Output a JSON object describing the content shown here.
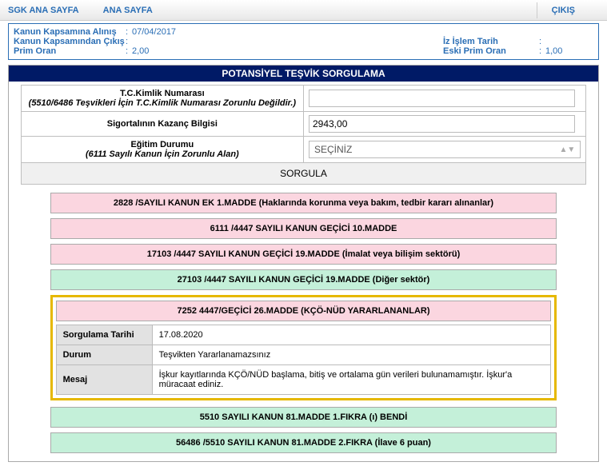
{
  "topbar": {
    "link1": "SGK ANA SAYFA",
    "link2": "ANA SAYFA",
    "exit": "ÇIKIŞ"
  },
  "info": {
    "rows": [
      {
        "l": "Kanun Kapsamına Alınış",
        "v": "07/04/2017",
        "rl": "",
        "rv": ""
      },
      {
        "l": "Kanun Kapsamından Çıkış",
        "v": "",
        "rl": "İz İşlem Tarih",
        "rv": ""
      },
      {
        "l": "Prim Oran",
        "v": "2,00",
        "rl": "Eski Prim Oran",
        "rv": "1,00"
      }
    ]
  },
  "panel": {
    "title": "POTANSİYEL TEŞVİK SORGULAMA"
  },
  "form": {
    "tc_label": "T.C.Kimlik Numarası",
    "tc_sub": "(5510/6486 Teşvikleri İçin T.C.Kimlik Numarası Zorunlu Değildir.)",
    "tc_value": "",
    "kazanc_label": "Sigortalının Kazanç Bilgisi",
    "kazanc_value": "2943,00",
    "egitim_label": "Eğitim Durumu",
    "egitim_sub": "(6111 Sayılı Kanun İçin Zorunlu Alan)",
    "egitim_value": "SEÇİNİZ",
    "sorgula": "SORGULA"
  },
  "items": {
    "a": "2828 /SAYILI KANUN EK 1.MADDE (Haklarında korunma veya bakım, tedbir kararı alınanlar)",
    "b": "6111 /4447 SAYILI KANUN GEÇİCİ 10.MADDE",
    "c": "17103 /4447 SAYILI KANUN GEÇİCİ 19.MADDE (İmalat veya bilişim sektörü)",
    "d": "27103 /4447 SAYILI KANUN GEÇİCİ 19.MADDE (Diğer sektör)",
    "e": "7252 4447/GEÇİCİ 26.MADDE (KÇÖ-NÜD YARARLANANLAR)",
    "f": "5510 SAYILI KANUN 81.MADDE 1.FIKRA (ı) BENDİ",
    "g": "56486 /5510 SAYILI KANUN 81.MADDE 2.FIKRA (İlave 6 puan)"
  },
  "detail": {
    "k1": "Sorgulama Tarihi",
    "v1": "17.08.2020",
    "k2": "Durum",
    "v2": "Teşvikten Yararlanamazsınız",
    "k3": "Mesaj",
    "v3": "İşkur kayıtlarında KÇÖ/NÜD başlama, bitiş ve ortalama gün verileri bulunamamıştır. İşkur'a müracaat ediniz."
  }
}
